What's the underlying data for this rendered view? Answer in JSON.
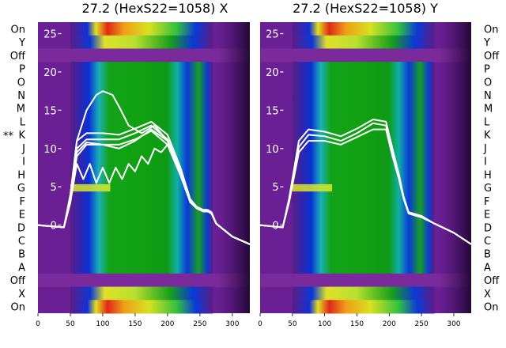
{
  "chart_data": [
    {
      "type": "heatmap",
      "title": "27.2 (HexS22=1058) X",
      "x_ticks": [
        0,
        50,
        100,
        150,
        200,
        250,
        300
      ],
      "xlim": [
        0,
        327
      ],
      "y_ticks": [
        0,
        5,
        10,
        15,
        20,
        25
      ],
      "ylim": [
        -11.5,
        26.5
      ],
      "row_labels_top_to_bottom": [
        "On",
        "Y",
        "Off",
        "P",
        "O",
        "N",
        "M",
        "L",
        "K",
        "J",
        "I",
        "H",
        "G",
        "F",
        "E",
        "D",
        "C",
        "B",
        "A",
        "Off",
        "X",
        "On"
      ],
      "marked_row": "K",
      "marker": "**",
      "colormap": "gnuplot-spectral",
      "profile_band": {
        "x_start": 50,
        "x_end": 270
      },
      "series": [
        {
          "x": [
            0,
            40,
            50,
            60,
            75,
            100,
            125,
            150,
            175,
            200,
            220,
            235,
            245,
            255,
            262,
            268,
            275,
            300,
            327
          ],
          "y": [
            0,
            -0.3,
            3,
            9,
            10.5,
            10.5,
            10.5,
            11.2,
            12.3,
            10.5,
            6.5,
            3,
            2.2,
            1.8,
            1.8,
            1.5,
            0.2,
            -1.5,
            -2.5
          ]
        },
        {
          "x": [
            0,
            40,
            50,
            60,
            75,
            100,
            125,
            150,
            175,
            200,
            220,
            235,
            245,
            255,
            262,
            268,
            275,
            300,
            327
          ],
          "y": [
            0,
            -0.3,
            3.2,
            10,
            11.2,
            11.2,
            11.2,
            12,
            13,
            11.2,
            7,
            3.2,
            2.3,
            1.9,
            1.9,
            1.6,
            0.2,
            -1.5,
            -2.5
          ]
        },
        {
          "x": [
            0,
            40,
            50,
            60,
            75,
            100,
            125,
            150,
            175,
            200,
            220,
            235,
            245,
            255,
            262,
            268,
            275,
            300,
            327
          ],
          "y": [
            0,
            -0.3,
            3.5,
            11,
            12,
            12,
            11.8,
            12.6,
            13.5,
            11.8,
            7.5,
            3.4,
            2.4,
            2,
            2,
            1.7,
            0.2,
            -1.5,
            -2.5
          ]
        },
        {
          "x": [
            0,
            40,
            50,
            60,
            75,
            100,
            125,
            150,
            175,
            200,
            220,
            235,
            245,
            255,
            262,
            268,
            275,
            300,
            327
          ],
          "y": [
            0,
            -0.3,
            3,
            9.5,
            10.8,
            10.5,
            10,
            11,
            12.5,
            11,
            7,
            3,
            2.2,
            1.8,
            1.8,
            1.5,
            0.2,
            -1.5,
            -2.5
          ]
        },
        {
          "x": [
            0,
            40,
            50,
            60,
            75,
            90,
            100,
            115,
            125,
            140,
            160,
            180,
            200,
            220,
            235,
            245,
            255,
            262,
            268,
            275,
            300,
            327
          ],
          "y": [
            0,
            -0.3,
            4,
            11,
            15,
            17,
            17.5,
            17,
            15.5,
            13,
            12,
            13,
            11,
            7,
            3,
            2.2,
            1.8,
            1.8,
            1.5,
            0.2,
            -1.5,
            -2.5
          ]
        },
        {
          "x": [
            0,
            40,
            50,
            60,
            70,
            80,
            90,
            100,
            110,
            120,
            130,
            140,
            150,
            160,
            170,
            180,
            190,
            200,
            220,
            235,
            245,
            255,
            262,
            268,
            275,
            300,
            327
          ],
          "y": [
            0,
            -0.3,
            3,
            8,
            6,
            8,
            5.5,
            7.5,
            5.5,
            7.5,
            6,
            8,
            7,
            9,
            8,
            10,
            9.5,
            10.5,
            6.5,
            3,
            2.2,
            1.8,
            1.8,
            1.5,
            0.2,
            -1.5,
            -2.5
          ]
        }
      ]
    },
    {
      "type": "heatmap",
      "title": "27.2 (HexS22=1058) Y",
      "x_ticks": [
        0,
        50,
        100,
        150,
        200,
        250,
        300
      ],
      "xlim": [
        0,
        327
      ],
      "y_ticks": [
        0,
        5,
        10,
        15,
        20,
        25
      ],
      "ylim": [
        -11.5,
        26.5
      ],
      "row_labels_top_to_bottom": [
        "On",
        "Y",
        "Off",
        "P",
        "O",
        "N",
        "M",
        "L",
        "K",
        "J",
        "I",
        "H",
        "G",
        "F",
        "E",
        "D",
        "C",
        "B",
        "A",
        "Off",
        "X",
        "On"
      ],
      "colormap": "gnuplot-spectral",
      "profile_band": {
        "x_start": 50,
        "x_end": 270
      },
      "series": [
        {
          "x": [
            0,
            35,
            45,
            60,
            75,
            100,
            125,
            150,
            175,
            195,
            205,
            215,
            222,
            230,
            250,
            270,
            300,
            327
          ],
          "y": [
            0,
            -0.3,
            3,
            9.5,
            11,
            11,
            10.5,
            11.5,
            12.5,
            12.5,
            9,
            6,
            3.5,
            1.5,
            1,
            0.2,
            -1,
            -2.5
          ]
        },
        {
          "x": [
            0,
            35,
            45,
            60,
            75,
            100,
            125,
            150,
            175,
            195,
            205,
            215,
            222,
            230,
            250,
            270,
            300,
            327
          ],
          "y": [
            0,
            -0.3,
            3.2,
            10.2,
            11.8,
            11.6,
            11,
            12,
            13.3,
            13,
            9.5,
            6.3,
            3.6,
            1.6,
            1.1,
            0.2,
            -1,
            -2.5
          ]
        },
        {
          "x": [
            0,
            35,
            45,
            60,
            75,
            100,
            125,
            150,
            175,
            195,
            205,
            215,
            222,
            230,
            250,
            270,
            300,
            327
          ],
          "y": [
            0,
            -0.3,
            3.5,
            11,
            12.5,
            12.2,
            11.6,
            12.6,
            13.8,
            13.5,
            10,
            6.6,
            3.8,
            1.7,
            1.2,
            0.2,
            -1,
            -2.5
          ]
        }
      ]
    }
  ]
}
